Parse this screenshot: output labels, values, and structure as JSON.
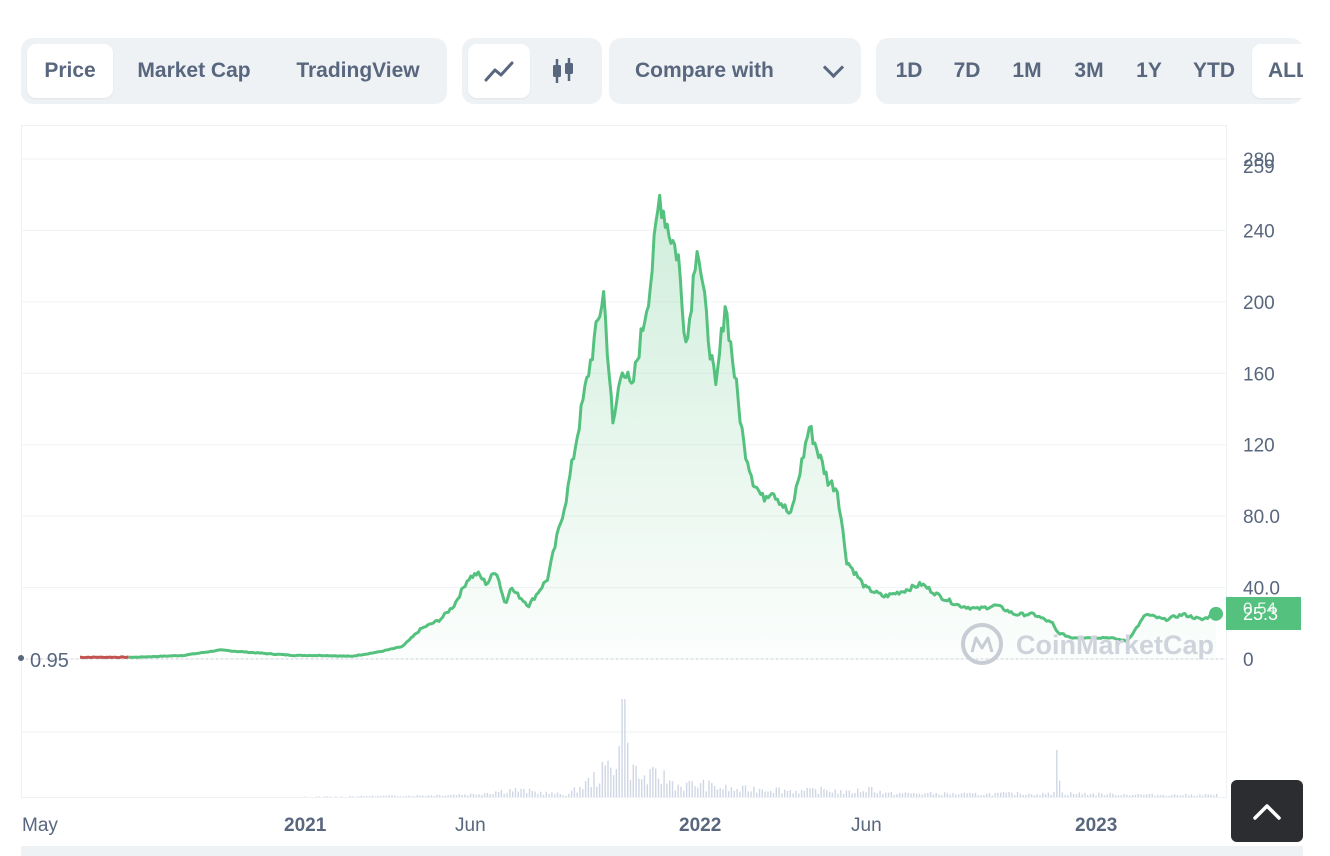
{
  "toolbar": {
    "view_tabs": [
      {
        "label": "Price",
        "active": true
      },
      {
        "label": "Market Cap",
        "active": false
      },
      {
        "label": "TradingView",
        "active": false
      }
    ],
    "chart_type_icons": [
      "line-chart-icon",
      "candlestick-icon"
    ],
    "compare_label": "Compare with",
    "ranges": [
      "1D",
      "7D",
      "1M",
      "3M",
      "1Y",
      "YTD",
      "ALL"
    ],
    "active_range": "ALL"
  },
  "watermark": "CoinMarketCap",
  "colors": {
    "line_up": "#55c17e",
    "line_down": "#c2534f",
    "axis_text": "#58667e",
    "grid": "#eff2f5",
    "volume": "#cfd6e4",
    "price_badge": "#55c17e"
  },
  "chart_data": {
    "type": "line",
    "title": "",
    "y_axis": {
      "ticks": [
        "0",
        "40.0",
        "80.0",
        "120",
        "160",
        "200",
        "240",
        "280"
      ],
      "ylim": [
        0,
        280
      ],
      "position": "right"
    },
    "x_axis": {
      "tick_labels": [
        "May",
        "2021",
        "Jun",
        "2022",
        "Jun",
        "2023"
      ]
    },
    "start_price_label": "0.95",
    "max_price_label": "259",
    "current_price_label": "25.3",
    "current_price_label_overlay": "0.54",
    "price_series": {
      "x": [
        0,
        60,
        110,
        150,
        200,
        230,
        260,
        290,
        320,
        345,
        365,
        385,
        400,
        415,
        425,
        435,
        445,
        455,
        460,
        470,
        480,
        500,
        520,
        540,
        560,
        570,
        580,
        590,
        600,
        610,
        620,
        630,
        640,
        645,
        650,
        660,
        670,
        680,
        690,
        700,
        710,
        720,
        730,
        740,
        760,
        780,
        800,
        810,
        820,
        840,
        860,
        880,
        900,
        920,
        940,
        960,
        980,
        1000,
        1020,
        1040,
        1045,
        1060,
        1100,
        1120,
        1140,
        1160,
        1180,
        1200,
        1215
      ],
      "y": [
        0.95,
        1,
        2,
        5,
        3,
        2,
        2,
        1.5,
        4,
        7,
        17,
        22,
        30,
        45,
        48,
        42,
        50,
        30,
        40,
        35,
        30,
        45,
        90,
        150,
        205,
        130,
        165,
        150,
        180,
        210,
        259,
        240,
        225,
        190,
        180,
        235,
        190,
        150,
        200,
        160,
        120,
        100,
        90,
        95,
        80,
        130,
        100,
        95,
        55,
        40,
        35,
        38,
        42,
        35,
        30,
        28,
        30,
        25,
        25,
        20,
        15,
        12,
        12,
        10,
        25,
        22,
        25,
        22,
        25.3
      ]
    },
    "volume_series": {
      "x": [
        0,
        200,
        360,
        420,
        460,
        520,
        556,
        566,
        575,
        580,
        585,
        590,
        600,
        620,
        640,
        660,
        700,
        730,
        770,
        800,
        820,
        846,
        860,
        900,
        960,
        1000,
        1040,
        1044,
        1050,
        1100,
        1150,
        1215
      ],
      "y": [
        0,
        0,
        2,
        4,
        10,
        3,
        30,
        45,
        60,
        100,
        55,
        40,
        25,
        30,
        15,
        18,
        10,
        12,
        8,
        10,
        6,
        12,
        5,
        5,
        4,
        5,
        4,
        40,
        5,
        4,
        3,
        3
      ]
    }
  }
}
